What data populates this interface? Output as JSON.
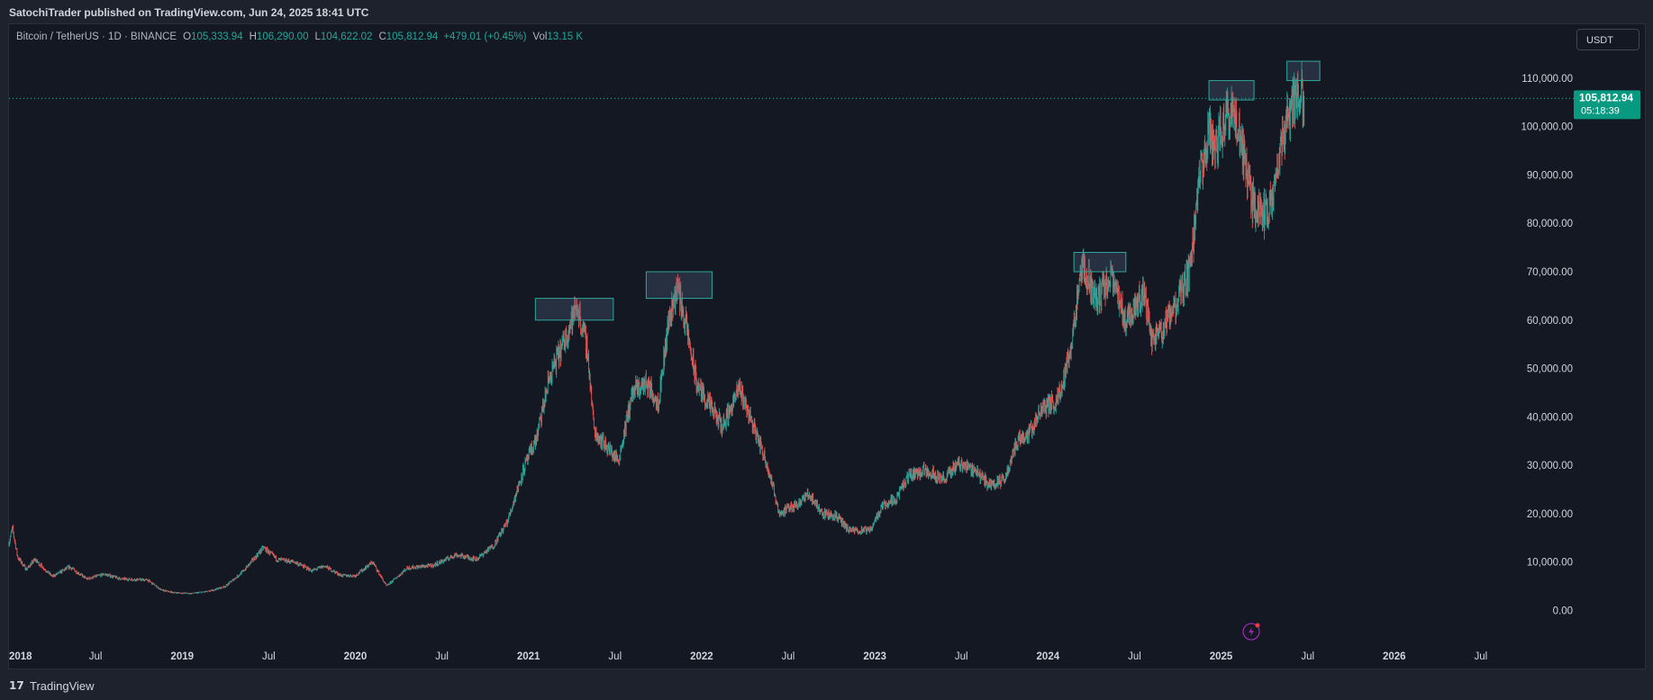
{
  "header": {
    "publisher_line": "SatochiTrader published on TradingView.com, Jun 24, 2025 18:41 UTC"
  },
  "legend": {
    "symbol": "Bitcoin / TetherUS · 1D · BINANCE",
    "open_label": "O",
    "open": "105,333.94",
    "high_label": "H",
    "high": "106,290.00",
    "low_label": "L",
    "low": "104,622.02",
    "close_label": "C",
    "close": "105,812.94",
    "change": "+479.01 (+0.45%)",
    "vol_label": "Vol",
    "vol": "13.15 K"
  },
  "toolbar": {
    "currency": "USDT"
  },
  "price_tag": {
    "price": "105,812.94",
    "countdown": "05:18:39"
  },
  "footer": {
    "brand": "TradingView"
  },
  "colors": {
    "up": "#26a69a",
    "down": "#ef5350",
    "background": "#141823",
    "accent": "#089981",
    "box_border": "#2fa79c"
  },
  "icons": {
    "footer_logo": "tradingview-logo-icon",
    "marker": "lightning-icon"
  },
  "chart_data": {
    "type": "candlestick",
    "title": "Bitcoin / TetherUS · 1D · BINANCE",
    "x_ticks": [
      "2018",
      "Jul",
      "2019",
      "Jul",
      "2020",
      "Jul",
      "2021",
      "Jul",
      "2022",
      "Jul",
      "2023",
      "Jul",
      "2024",
      "Jul",
      "2025",
      "Jul",
      "2026",
      "Jul"
    ],
    "x_tick_years": [
      2018,
      2018.5,
      2019,
      2019.5,
      2020,
      2020.5,
      2021,
      2021.5,
      2022,
      2022.5,
      2023,
      2023.5,
      2024,
      2024.5,
      2025,
      2025.5,
      2026,
      2026.5
    ],
    "y_ticks": [
      "0.00",
      "10,000.00",
      "20,000.00",
      "30,000.00",
      "40,000.00",
      "50,000.00",
      "60,000.00",
      "70,000.00",
      "80,000.00",
      "90,000.00",
      "100,000.00",
      "110,000.00"
    ],
    "y_tick_values": [
      0,
      10000,
      20000,
      30000,
      40000,
      50000,
      60000,
      70000,
      80000,
      90000,
      100000,
      110000
    ],
    "ylim": [
      -4000,
      115000
    ],
    "xlim": [
      2018.0,
      2027.0
    ],
    "current_price": 105812.94,
    "price_path": [
      [
        2018.0,
        14000
      ],
      [
        2018.02,
        17000
      ],
      [
        2018.05,
        11000
      ],
      [
        2018.1,
        8500
      ],
      [
        2018.15,
        10500
      ],
      [
        2018.25,
        7000
      ],
      [
        2018.35,
        9000
      ],
      [
        2018.45,
        6500
      ],
      [
        2018.55,
        7500
      ],
      [
        2018.65,
        6500
      ],
      [
        2018.8,
        6300
      ],
      [
        2018.88,
        4200
      ],
      [
        2018.95,
        3700
      ],
      [
        2019.05,
        3500
      ],
      [
        2019.15,
        3900
      ],
      [
        2019.25,
        5000
      ],
      [
        2019.35,
        8000
      ],
      [
        2019.47,
        13000
      ],
      [
        2019.55,
        10500
      ],
      [
        2019.65,
        10000
      ],
      [
        2019.75,
        8200
      ],
      [
        2019.82,
        9200
      ],
      [
        2019.92,
        7200
      ],
      [
        2020.0,
        7200
      ],
      [
        2020.1,
        10000
      ],
      [
        2020.18,
        5000
      ],
      [
        2020.3,
        8800
      ],
      [
        2020.45,
        9300
      ],
      [
        2020.58,
        11500
      ],
      [
        2020.7,
        10600
      ],
      [
        2020.8,
        13500
      ],
      [
        2020.88,
        18500
      ],
      [
        2020.97,
        29000
      ],
      [
        2021.05,
        36000
      ],
      [
        2021.12,
        48000
      ],
      [
        2021.2,
        55000
      ],
      [
        2021.28,
        63000
      ],
      [
        2021.34,
        54000
      ],
      [
        2021.38,
        37000
      ],
      [
        2021.45,
        34000
      ],
      [
        2021.52,
        31000
      ],
      [
        2021.6,
        45000
      ],
      [
        2021.68,
        47000
      ],
      [
        2021.75,
        43000
      ],
      [
        2021.81,
        60000
      ],
      [
        2021.86,
        67000
      ],
      [
        2021.92,
        57000
      ],
      [
        2021.97,
        47000
      ],
      [
        2022.05,
        42000
      ],
      [
        2022.12,
        38000
      ],
      [
        2022.22,
        46000
      ],
      [
        2022.3,
        38000
      ],
      [
        2022.38,
        30000
      ],
      [
        2022.45,
        20000
      ],
      [
        2022.55,
        22000
      ],
      [
        2022.62,
        24000
      ],
      [
        2022.7,
        20000
      ],
      [
        2022.78,
        19500
      ],
      [
        2022.85,
        16500
      ],
      [
        2022.97,
        16500
      ],
      [
        2023.05,
        22000
      ],
      [
        2023.12,
        23000
      ],
      [
        2023.2,
        28000
      ],
      [
        2023.3,
        29000
      ],
      [
        2023.4,
        27000
      ],
      [
        2023.48,
        30500
      ],
      [
        2023.58,
        29000
      ],
      [
        2023.66,
        26000
      ],
      [
        2023.75,
        27000
      ],
      [
        2023.82,
        35000
      ],
      [
        2023.9,
        37000
      ],
      [
        2023.97,
        42000
      ],
      [
        2024.05,
        43000
      ],
      [
        2024.12,
        52000
      ],
      [
        2024.2,
        71000
      ],
      [
        2024.28,
        64000
      ],
      [
        2024.36,
        69000
      ],
      [
        2024.45,
        60000
      ],
      [
        2024.55,
        66000
      ],
      [
        2024.6,
        56000
      ],
      [
        2024.66,
        58000
      ],
      [
        2024.74,
        63000
      ],
      [
        2024.82,
        70000
      ],
      [
        2024.88,
        90000
      ],
      [
        2024.93,
        99000
      ],
      [
        2024.97,
        95000
      ],
      [
        2025.02,
        102000
      ],
      [
        2025.06,
        104000
      ],
      [
        2025.12,
        96000
      ],
      [
        2025.18,
        84000
      ],
      [
        2025.25,
        82000
      ],
      [
        2025.3,
        85000
      ],
      [
        2025.34,
        95000
      ],
      [
        2025.4,
        104000
      ],
      [
        2025.45,
        108000
      ],
      [
        2025.48,
        105000
      ]
    ],
    "annotation_boxes": [
      {
        "x_start": 2021.04,
        "x_end": 2021.49,
        "y_low": 60000,
        "y_high": 64500
      },
      {
        "x_start": 2021.68,
        "x_end": 2022.06,
        "y_low": 64500,
        "y_high": 70000
      },
      {
        "x_start": 2024.15,
        "x_end": 2024.45,
        "y_low": 70000,
        "y_high": 74000
      },
      {
        "x_start": 2024.93,
        "x_end": 2025.19,
        "y_low": 105500,
        "y_high": 109500
      },
      {
        "x_start": 2025.38,
        "x_end": 2025.57,
        "y_low": 109500,
        "y_high": 113500
      }
    ]
  }
}
